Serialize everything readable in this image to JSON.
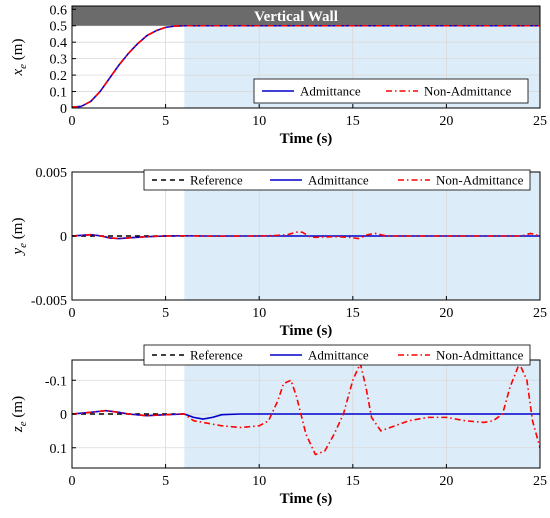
{
  "chart_data": [
    {
      "type": "line",
      "ylabel_main": "x",
      "ylabel_sub": "e",
      "ylabel_unit": " (m)",
      "xlabel": "Time (s)",
      "xlim": [
        0,
        25
      ],
      "ylim": [
        0,
        0.62
      ],
      "xticks": [
        0,
        5,
        10,
        15,
        20,
        25
      ],
      "xtick_labels": [
        "0",
        "5",
        "10",
        "15",
        "20",
        "25"
      ],
      "yticks": [
        0,
        0.1,
        0.2,
        0.3,
        0.4,
        0.5,
        0.6
      ],
      "ytick_labels": [
        "0",
        "0.1",
        "0.2",
        "0.3",
        "0.4",
        "0.5",
        "0.6"
      ],
      "y_reversed": false,
      "grid": true,
      "shaded_region": {
        "x_start": 6,
        "x_end": 25,
        "color": "#dcecf8"
      },
      "wall_band": {
        "y_start": 0.5,
        "y_end": 0.62,
        "color": "#6b6b6b",
        "label": "Vertical Wall"
      },
      "legend": {
        "placement": "bottom-right",
        "entries": [
          "Admittance",
          "Non-Admittance"
        ]
      },
      "series": [
        {
          "name": "Admittance",
          "color": "#0000cc",
          "dash": "solid",
          "x": [
            0,
            0.5,
            1,
            1.5,
            2,
            2.5,
            3,
            3.5,
            4,
            4.5,
            5,
            5.5,
            6,
            7,
            10,
            15,
            20,
            25
          ],
          "y": [
            0.005,
            0.01,
            0.04,
            0.1,
            0.18,
            0.26,
            0.33,
            0.39,
            0.44,
            0.47,
            0.49,
            0.498,
            0.5,
            0.5,
            0.5,
            0.5,
            0.5,
            0.5
          ]
        },
        {
          "name": "Non-Admittance",
          "color": "#ff0000",
          "dash": "6,3,1.5,3",
          "x": [
            0,
            0.5,
            1,
            1.5,
            2,
            2.5,
            3,
            3.5,
            4,
            4.5,
            5,
            5.5,
            6,
            7,
            10,
            15,
            20,
            25
          ],
          "y": [
            0.005,
            0.01,
            0.04,
            0.1,
            0.18,
            0.26,
            0.33,
            0.39,
            0.44,
            0.47,
            0.49,
            0.498,
            0.5,
            0.5,
            0.5,
            0.5,
            0.5,
            0.5
          ]
        }
      ]
    },
    {
      "type": "line",
      "ylabel_main": "y",
      "ylabel_sub": "e",
      "ylabel_unit": " (m)",
      "xlabel": "Time (s)",
      "xlim": [
        0,
        25
      ],
      "ylim": [
        -0.005,
        0.005
      ],
      "xticks": [
        0,
        5,
        10,
        15,
        20,
        25
      ],
      "xtick_labels": [
        "0",
        "5",
        "10",
        "15",
        "20",
        "25"
      ],
      "yticks": [
        -0.005,
        0,
        0.005
      ],
      "ytick_labels": [
        "-0.005",
        "0",
        "0.005"
      ],
      "y_reversed": false,
      "grid": true,
      "shaded_region": {
        "x_start": 6,
        "x_end": 25,
        "color": "#dcecf8"
      },
      "legend": {
        "placement": "top",
        "entries": [
          "Reference",
          "Admittance",
          "Non-Admittance"
        ]
      },
      "series": [
        {
          "name": "Reference",
          "color": "#000000",
          "dash": "5,4",
          "x": [
            0,
            6
          ],
          "y": [
            0,
            0
          ]
        },
        {
          "name": "Admittance",
          "color": "#0000cc",
          "dash": "solid",
          "x": [
            0,
            0.5,
            1,
            1.5,
            2,
            2.5,
            3,
            4,
            5,
            6,
            7,
            8,
            10,
            15,
            20,
            25
          ],
          "y": [
            0,
            5e-05,
            0.0001,
            2e-05,
            -0.00015,
            -0.0002,
            -0.00015,
            -5e-05,
            0,
            2e-05,
            0,
            0,
            0,
            0,
            0,
            0
          ]
        },
        {
          "name": "Non-Admittance",
          "color": "#ff0000",
          "dash": "6,3,1.5,3",
          "x": [
            0,
            0.5,
            1,
            1.5,
            2,
            2.5,
            3,
            4,
            5,
            6,
            7,
            8,
            9,
            10,
            11,
            11.5,
            12,
            12.3,
            12.7,
            13,
            14,
            14.8,
            15.3,
            15.8,
            16.2,
            16.8,
            18,
            20,
            22,
            24,
            24.5,
            25
          ],
          "y": [
            0,
            5e-05,
            0.0001,
            2e-05,
            -0.00015,
            -0.0002,
            -0.00015,
            -5e-05,
            0,
            2e-05,
            0,
            -2e-05,
            0,
            0,
            5e-05,
            0.0001,
            0.0003,
            0.0003,
            -5e-05,
            -0.0001,
            -5e-05,
            -0.0001,
            -0.0002,
            0.0001,
            0.0002,
            0,
            0,
            0,
            0,
            0,
            0.0002,
            0
          ]
        }
      ]
    },
    {
      "type": "line",
      "ylabel_main": "z",
      "ylabel_sub": "e",
      "ylabel_unit": " (m)",
      "xlabel": "Time (s)",
      "xlim": [
        0,
        25
      ],
      "ylim": [
        -0.16,
        0.16
      ],
      "xticks": [
        0,
        5,
        10,
        15,
        20,
        25
      ],
      "xtick_labels": [
        "0",
        "5",
        "10",
        "15",
        "20",
        "25"
      ],
      "yticks": [
        -0.1,
        0,
        0.1
      ],
      "ytick_labels": [
        "-0.1",
        "0",
        "0.1"
      ],
      "y_reversed": true,
      "grid": true,
      "shaded_region": {
        "x_start": 6,
        "x_end": 25,
        "color": "#dcecf8"
      },
      "legend": {
        "placement": "top",
        "entries": [
          "Reference",
          "Admittance",
          "Non-Admittance"
        ]
      },
      "series": [
        {
          "name": "Reference",
          "color": "#000000",
          "dash": "5,4",
          "x": [
            0,
            6
          ],
          "y": [
            0,
            0
          ]
        },
        {
          "name": "Admittance",
          "color": "#0000cc",
          "dash": "solid",
          "x": [
            0,
            1,
            1.8,
            2.5,
            3,
            4,
            5,
            6,
            6.5,
            7,
            7.5,
            8,
            9,
            10,
            15,
            20,
            25
          ],
          "y": [
            0,
            -0.005,
            -0.01,
            -0.005,
            0,
            0.005,
            0.002,
            0,
            0.01,
            0.015,
            0.01,
            0.002,
            0,
            0,
            0,
            0,
            0
          ]
        },
        {
          "name": "Non-Admittance",
          "color": "#ff0000",
          "dash": "6,3,1.5,3",
          "x": [
            0,
            1,
            1.8,
            2.5,
            3,
            4,
            5,
            6,
            6.5,
            7,
            8,
            9,
            10,
            10.5,
            11,
            11.3,
            11.7,
            12,
            12.5,
            13,
            13.5,
            14,
            14.5,
            15,
            15.4,
            15.7,
            16,
            16.5,
            17,
            18,
            19,
            20,
            21,
            22,
            22.5,
            23,
            23.4,
            23.9,
            24.3,
            24.6,
            25
          ],
          "y": [
            0,
            -0.005,
            -0.01,
            -0.005,
            0,
            0.005,
            0.002,
            0,
            0.02,
            0.025,
            0.035,
            0.04,
            0.035,
            0.02,
            -0.04,
            -0.09,
            -0.1,
            -0.05,
            0.06,
            0.12,
            0.11,
            0.06,
            0,
            -0.1,
            -0.15,
            -0.08,
            0.01,
            0.05,
            0.04,
            0.02,
            0.01,
            0.01,
            0.02,
            0.025,
            0.02,
            0,
            -0.08,
            -0.15,
            -0.1,
            0.02,
            0.1
          ]
        }
      ]
    }
  ]
}
